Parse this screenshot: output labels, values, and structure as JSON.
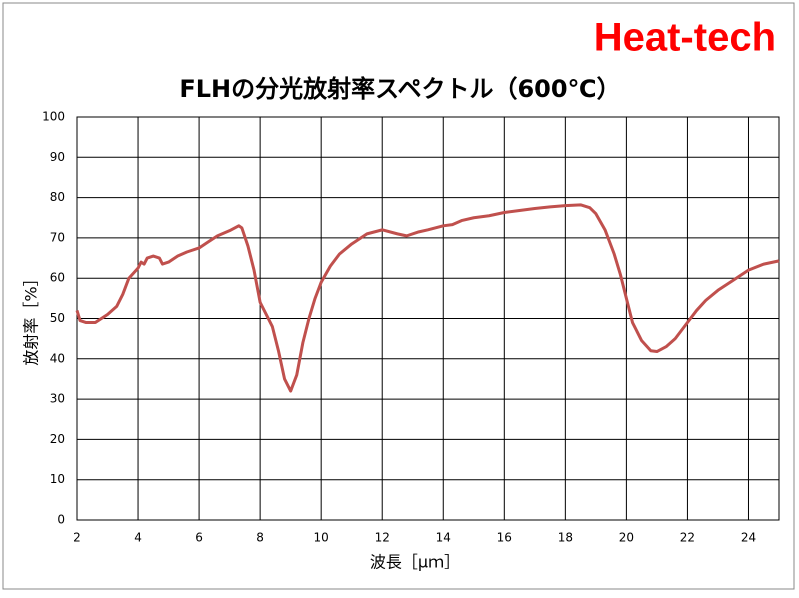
{
  "logo": "Heat-tech",
  "chart_data": {
    "type": "line",
    "title": "FLHの分光放射率スペクトル（600℃）",
    "x_label": "波長［μｍ］",
    "y_label": "放射率［%］",
    "xlim": [
      2,
      25
    ],
    "xticks": [
      2,
      4,
      6,
      8,
      10,
      12,
      14,
      16,
      18,
      20,
      22,
      24
    ],
    "ylim": [
      0,
      100
    ],
    "yticks": [
      0,
      10,
      20,
      30,
      40,
      50,
      60,
      70,
      80,
      90,
      100
    ],
    "grid": true,
    "series": [
      {
        "color": "#c0504d",
        "x": [
          2.0,
          2.1,
          2.3,
          2.6,
          2.8,
          3.0,
          3.3,
          3.5,
          3.7,
          4.0,
          4.1,
          4.2,
          4.3,
          4.5,
          4.7,
          4.8,
          5.0,
          5.3,
          5.6,
          6.0,
          6.3,
          6.6,
          7.0,
          7.3,
          7.4,
          7.6,
          7.8,
          8.0,
          8.2,
          8.4,
          8.6,
          8.8,
          9.0,
          9.2,
          9.4,
          9.6,
          9.8,
          10.0,
          10.3,
          10.6,
          11.0,
          11.5,
          12.0,
          12.5,
          12.8,
          13.2,
          13.5,
          14.0,
          14.3,
          14.6,
          15.0,
          15.5,
          16.0,
          16.5,
          17.0,
          17.5,
          18.0,
          18.5,
          18.8,
          19.0,
          19.3,
          19.6,
          19.8,
          20.0,
          20.2,
          20.5,
          20.8,
          21.0,
          21.3,
          21.6,
          22.0,
          22.3,
          22.6,
          23.0,
          23.5,
          24.0,
          24.5,
          25.0
        ],
        "values": [
          52,
          49.5,
          49,
          49,
          50,
          51,
          53,
          56,
          60,
          62.5,
          64,
          63.5,
          65,
          65.5,
          65,
          63.5,
          64,
          65.5,
          66.5,
          67.5,
          69,
          70.5,
          71.8,
          73,
          72.5,
          68,
          62,
          54,
          51,
          48,
          42,
          35,
          32,
          36,
          44,
          50,
          55,
          59,
          63,
          66,
          68.5,
          71,
          72,
          71,
          70.5,
          71.5,
          72,
          73,
          73.3,
          74.3,
          75,
          75.5,
          76.3,
          76.8,
          77.3,
          77.7,
          78,
          78.2,
          77.5,
          76,
          72,
          66,
          61,
          55,
          49,
          44.5,
          42,
          41.8,
          43,
          45,
          49,
          52,
          54.5,
          57,
          59.5,
          62,
          63.5,
          64.3
        ]
      }
    ]
  }
}
